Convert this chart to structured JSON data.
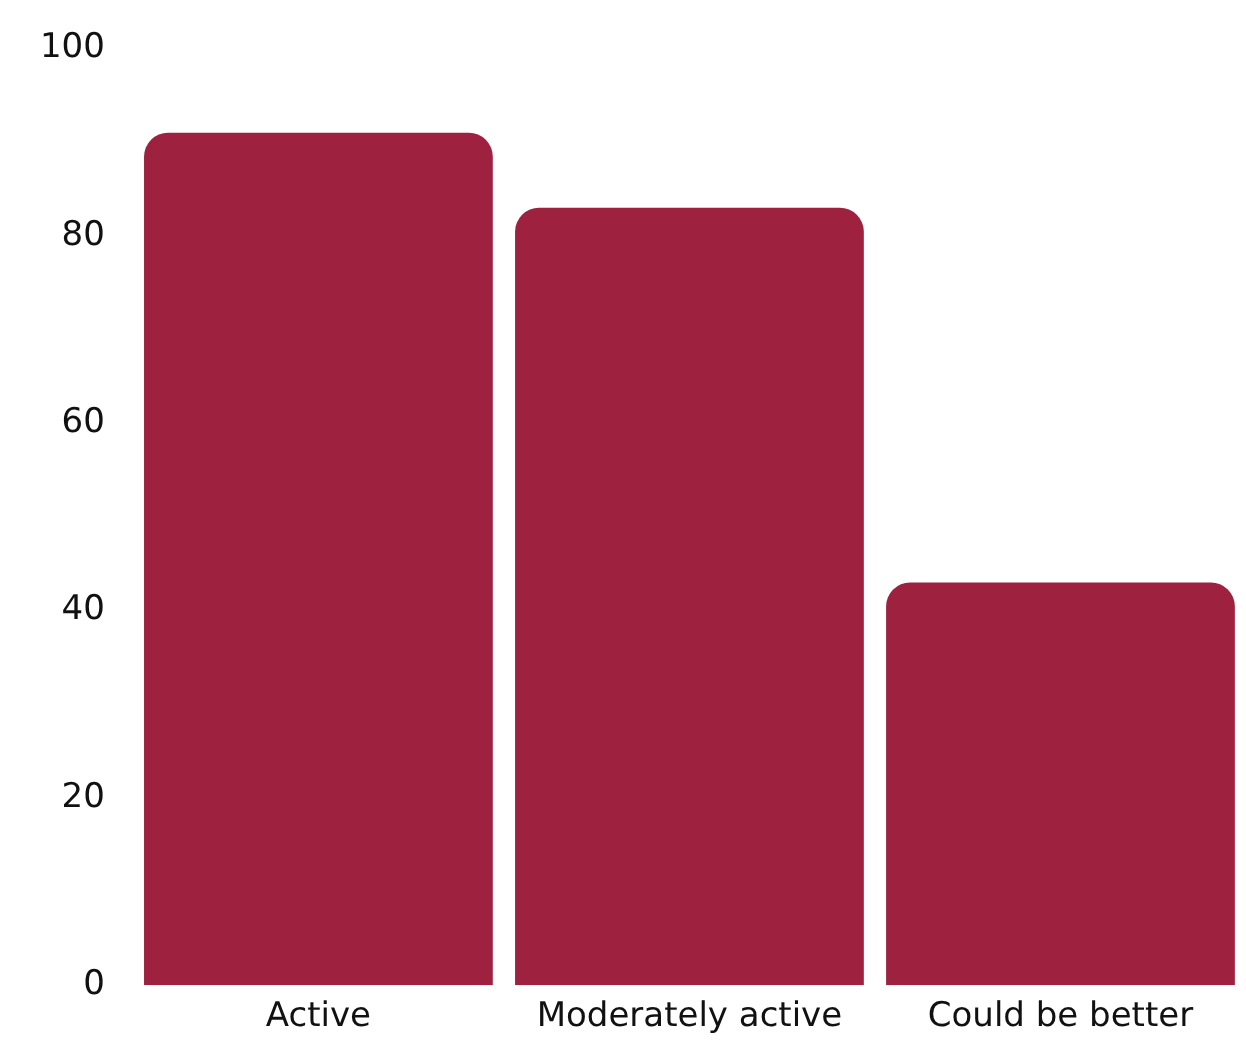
{
  "chart_data": {
    "type": "bar",
    "categories": [
      "Active",
      "Moderately active",
      "Could be better"
    ],
    "values": [
      91,
      83,
      43
    ],
    "color": "#9e2240",
    "ylim": [
      0,
      100
    ],
    "yticks": [
      0,
      20,
      40,
      60,
      80,
      100
    ],
    "grid": false,
    "legend": false
  }
}
